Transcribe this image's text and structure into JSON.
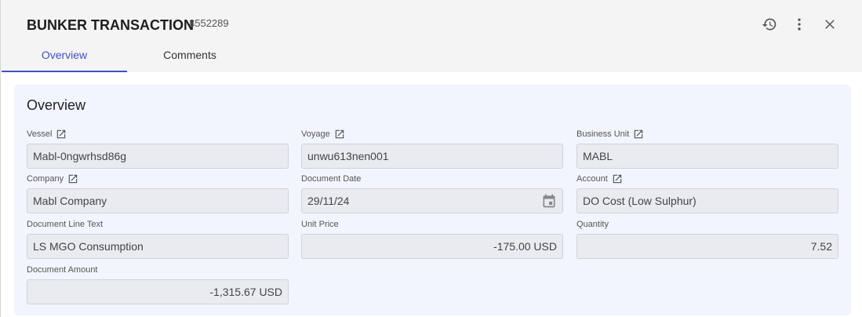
{
  "header": {
    "title": "BUNKER TRANSACTION",
    "doc_number": "8552289"
  },
  "tabs": [
    {
      "label": "Overview",
      "active": true
    },
    {
      "label": "Comments",
      "active": false
    }
  ],
  "section": {
    "title": "Overview"
  },
  "fields": [
    {
      "label": "Vessel",
      "value": "Mabl-0ngwrhsd86g",
      "link": true
    },
    {
      "label": "Voyage",
      "value": "unwu613nen001",
      "link": true
    },
    {
      "label": "Business Unit",
      "value": "MABL",
      "link": true
    },
    {
      "label": "Company",
      "value": "Mabl Company",
      "link": true
    },
    {
      "label": "Document Date",
      "value": "29/11/24",
      "link": false
    },
    {
      "label": "Account",
      "value": "DO Cost (Low Sulphur)",
      "link": true
    },
    {
      "label": "Document Line Text",
      "value": "LS MGO Consumption",
      "link": false
    },
    {
      "label": "Unit Price",
      "value": "-175.00 USD",
      "link": false
    },
    {
      "label": "Quantity",
      "value": "7.52",
      "link": false
    },
    {
      "label": "Document Amount",
      "value": "-1,315.67 USD",
      "link": false
    }
  ],
  "colors": {
    "accent": "#3f51c5",
    "panel": "#f2f5fd",
    "header": "#f4f4f4"
  }
}
